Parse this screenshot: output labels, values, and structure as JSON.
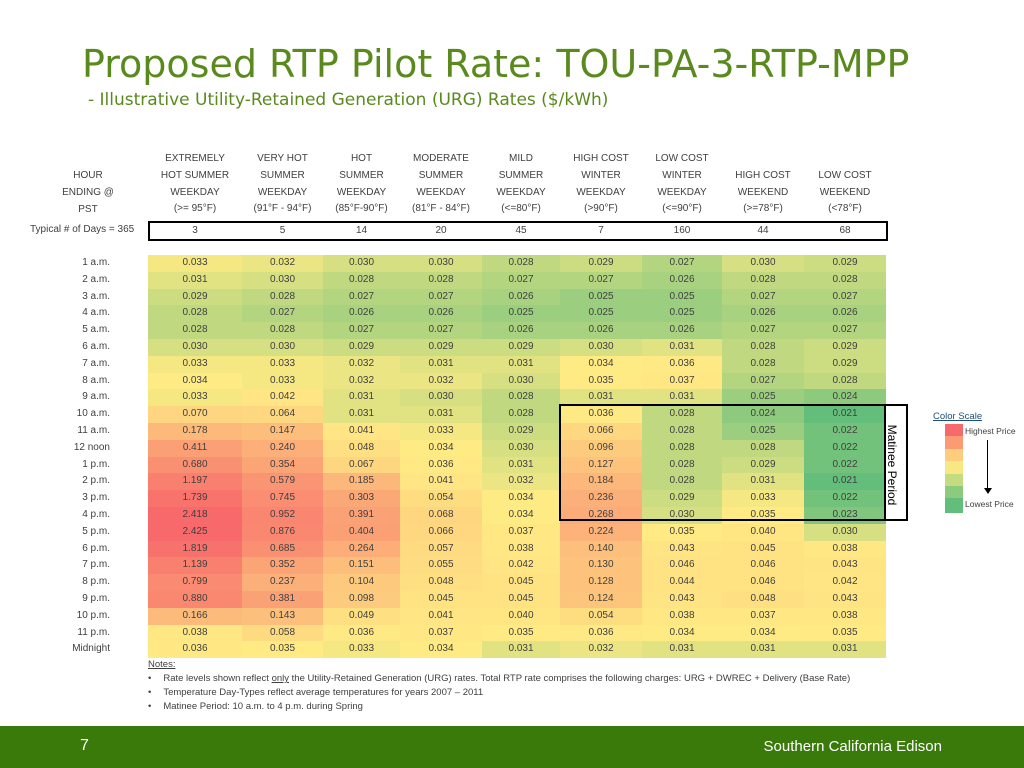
{
  "header": {
    "title": "Proposed RTP Pilot Rate:  TOU-PA-3-RTP-MPP",
    "subtitle": "- Illustrative Utility-Retained Generation (URG) Rates ($/kWh)"
  },
  "table": {
    "hour_header": [
      "HOUR",
      "ENDING @",
      "PST"
    ],
    "columns": [
      [
        "EXTREMELY",
        "HOT SUMMER",
        "WEEKDAY",
        "(>= 95°F)"
      ],
      [
        "VERY HOT",
        "SUMMER",
        "WEEKDAY",
        "(91°F - 94°F)"
      ],
      [
        "HOT",
        "SUMMER",
        "WEEKDAY",
        "(85°F-90°F)"
      ],
      [
        "MODERATE",
        "SUMMER",
        "WEEKDAY",
        "(81°F - 84°F)"
      ],
      [
        "MILD",
        "SUMMER",
        "WEEKDAY",
        "(<=80°F)"
      ],
      [
        "HIGH COST",
        "WINTER",
        "WEEKDAY",
        "(>90°F)"
      ],
      [
        "LOW COST",
        "WINTER",
        "WEEKDAY",
        "(<=90°F)"
      ],
      [
        "",
        "HIGH COST",
        "WEEKEND",
        "(>=78°F)"
      ],
      [
        "",
        "LOW COST",
        "WEEKEND",
        "(<78°F)"
      ]
    ],
    "days_label": "Typical # of Days = 365",
    "days": [
      "3",
      "5",
      "14",
      "20",
      "45",
      "7",
      "160",
      "44",
      "68"
    ],
    "hours": [
      "1 a.m.",
      "2 a.m.",
      "3 a.m.",
      "4 a.m.",
      "5 a.m.",
      "6 a.m.",
      "7 a.m.",
      "8 a.m.",
      "9 a.m.",
      "10 a.m.",
      "11 a.m.",
      "12 noon",
      "1 p.m.",
      "2 p.m.",
      "3 p.m.",
      "4 p.m.",
      "5 p.m.",
      "6 p.m.",
      "7 p.m.",
      "8 p.m.",
      "9 p.m.",
      "10 p.m.",
      "11 p.m.",
      "Midnight"
    ],
    "rows": [
      [
        "0.033",
        "0.032",
        "0.030",
        "0.030",
        "0.028",
        "0.029",
        "0.027",
        "0.030",
        "0.029"
      ],
      [
        "0.031",
        "0.030",
        "0.028",
        "0.028",
        "0.027",
        "0.027",
        "0.026",
        "0.028",
        "0.028"
      ],
      [
        "0.029",
        "0.028",
        "0.027",
        "0.027",
        "0.026",
        "0.025",
        "0.025",
        "0.027",
        "0.027"
      ],
      [
        "0.028",
        "0.027",
        "0.026",
        "0.026",
        "0.025",
        "0.025",
        "0.025",
        "0.026",
        "0.026"
      ],
      [
        "0.028",
        "0.028",
        "0.027",
        "0.027",
        "0.026",
        "0.026",
        "0.026",
        "0.027",
        "0.027"
      ],
      [
        "0.030",
        "0.030",
        "0.029",
        "0.029",
        "0.029",
        "0.030",
        "0.031",
        "0.028",
        "0.029"
      ],
      [
        "0.033",
        "0.033",
        "0.032",
        "0.031",
        "0.031",
        "0.034",
        "0.036",
        "0.028",
        "0.029"
      ],
      [
        "0.034",
        "0.033",
        "0.032",
        "0.032",
        "0.030",
        "0.035",
        "0.037",
        "0.027",
        "0.028"
      ],
      [
        "0.033",
        "0.042",
        "0.031",
        "0.030",
        "0.028",
        "0.031",
        "0.031",
        "0.025",
        "0.024"
      ],
      [
        "0.070",
        "0.064",
        "0.031",
        "0.031",
        "0.028",
        "0.036",
        "0.028",
        "0.024",
        "0.021"
      ],
      [
        "0.178",
        "0.147",
        "0.041",
        "0.033",
        "0.029",
        "0.066",
        "0.028",
        "0.025",
        "0.022"
      ],
      [
        "0.411",
        "0.240",
        "0.048",
        "0.034",
        "0.030",
        "0.096",
        "0.028",
        "0.028",
        "0.022"
      ],
      [
        "0.680",
        "0.354",
        "0.067",
        "0.036",
        "0.031",
        "0.127",
        "0.028",
        "0.029",
        "0.022"
      ],
      [
        "1.197",
        "0.579",
        "0.185",
        "0.041",
        "0.032",
        "0.184",
        "0.028",
        "0.031",
        "0.021"
      ],
      [
        "1.739",
        "0.745",
        "0.303",
        "0.054",
        "0.034",
        "0.236",
        "0.029",
        "0.033",
        "0.022"
      ],
      [
        "2.418",
        "0.952",
        "0.391",
        "0.068",
        "0.034",
        "0.268",
        "0.030",
        "0.035",
        "0.023"
      ],
      [
        "2.425",
        "0.876",
        "0.404",
        "0.066",
        "0.037",
        "0.224",
        "0.035",
        "0.040",
        "0.030"
      ],
      [
        "1.819",
        "0.685",
        "0.264",
        "0.057",
        "0.038",
        "0.140",
        "0.043",
        "0.045",
        "0.038"
      ],
      [
        "1.139",
        "0.352",
        "0.151",
        "0.055",
        "0.042",
        "0.130",
        "0.046",
        "0.046",
        "0.043"
      ],
      [
        "0.799",
        "0.237",
        "0.104",
        "0.048",
        "0.045",
        "0.128",
        "0.044",
        "0.046",
        "0.042"
      ],
      [
        "0.880",
        "0.381",
        "0.098",
        "0.045",
        "0.045",
        "0.124",
        "0.043",
        "0.048",
        "0.043"
      ],
      [
        "0.166",
        "0.143",
        "0.049",
        "0.041",
        "0.040",
        "0.054",
        "0.038",
        "0.037",
        "0.038"
      ],
      [
        "0.038",
        "0.058",
        "0.036",
        "0.037",
        "0.035",
        "0.036",
        "0.034",
        "0.034",
        "0.035"
      ],
      [
        "0.036",
        "0.035",
        "0.033",
        "0.034",
        "0.031",
        "0.032",
        "0.031",
        "0.031",
        "0.031"
      ]
    ]
  },
  "matinee_label": "Matinee Period",
  "color_scale": {
    "title": "Color Scale",
    "high_label": "Highest Price",
    "low_label": "Lowest Price",
    "colors": [
      "#f8696b",
      "#fa9b74",
      "#fdcd7e",
      "#f7e883",
      "#c5db80",
      "#8ccb7e",
      "#63be7b"
    ]
  },
  "notes": {
    "title": "Notes:",
    "items": [
      {
        "pre": "Rate levels shown reflect ",
        "u": "only",
        "post": " the Utility-Retained Generation (URG) rates.  Total RTP rate comprises the following charges: URG + DWREC + Delivery (Base Rate)"
      },
      {
        "pre": "Temperature Day-Types reflect average temperatures for years 2007 – 2011",
        "u": "",
        "post": ""
      },
      {
        "pre": "Matinee Period:  10 a.m. to 4 p.m. during Spring",
        "u": "",
        "post": ""
      }
    ],
    "bullet": "•"
  },
  "footer": {
    "page": "7",
    "brand": "Southern California Edison"
  }
}
